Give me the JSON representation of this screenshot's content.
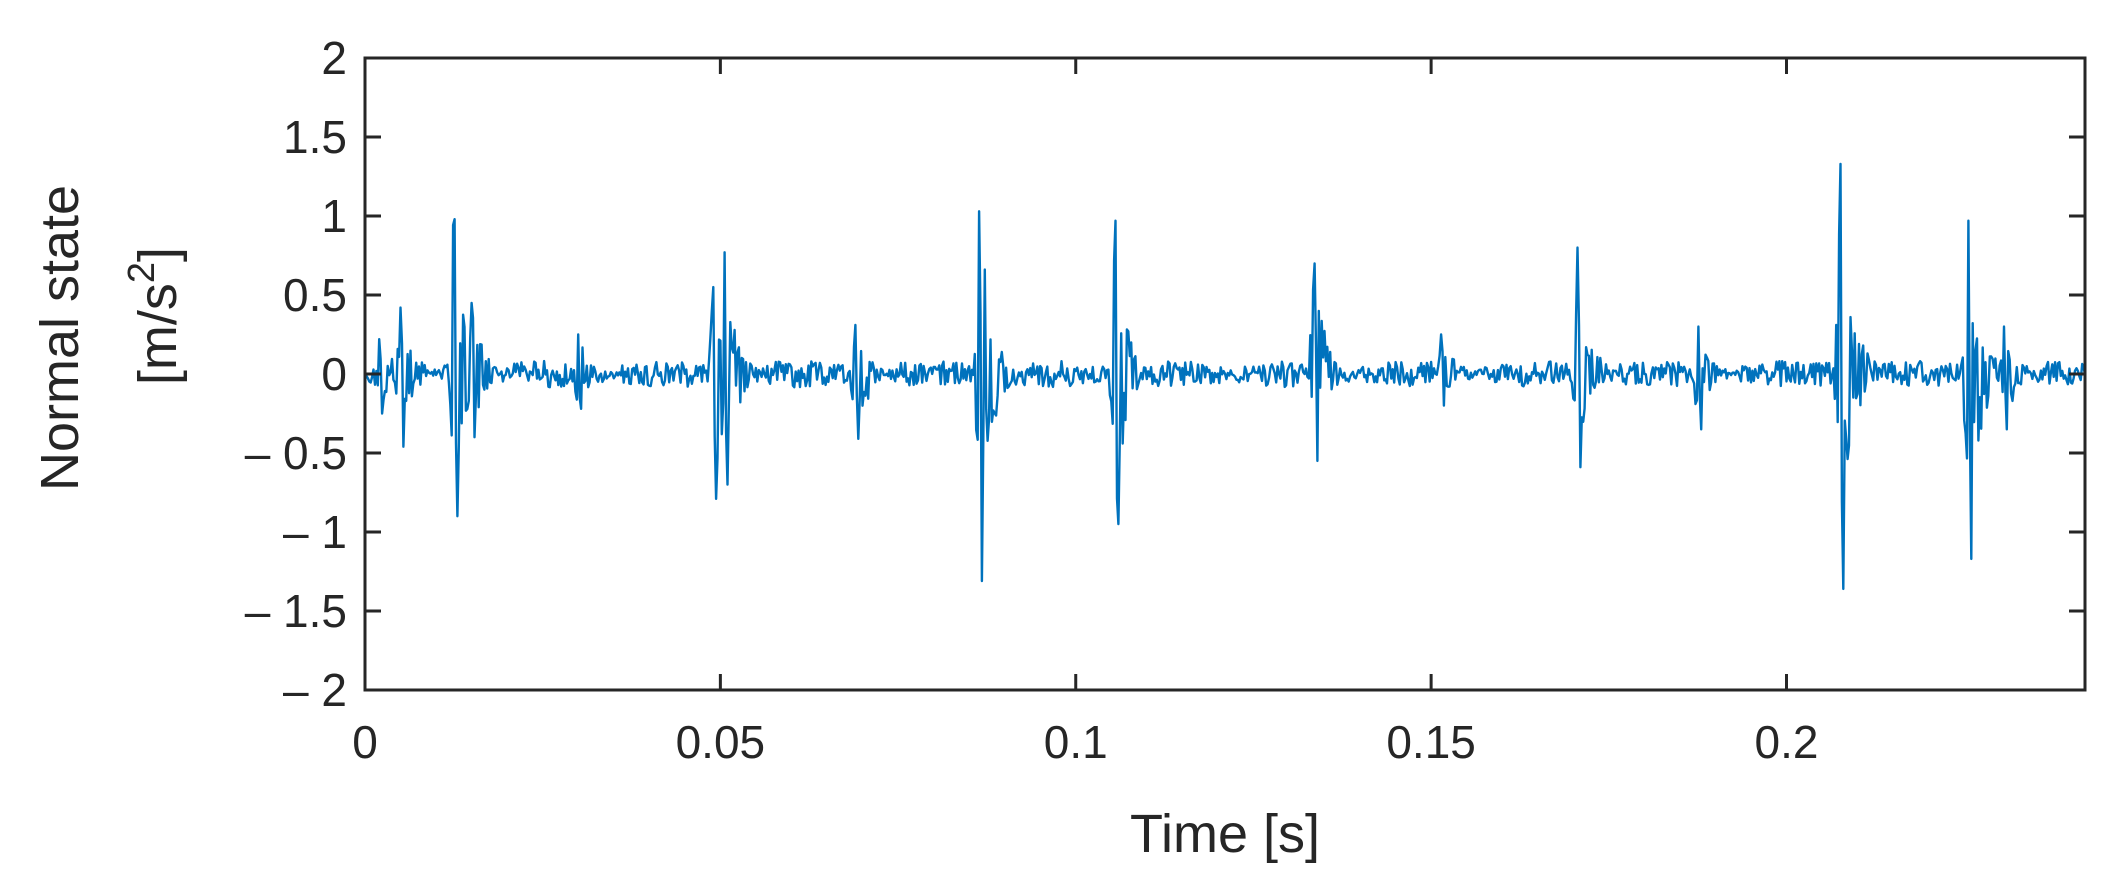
{
  "chart_data": {
    "type": "line",
    "title": "",
    "xlabel": "Time [s]",
    "ylabel_line1": "Normal state",
    "ylabel_line2_prefix": "[m/s",
    "ylabel_line2_sup": "2",
    "ylabel_line2_suffix": "]",
    "xlim": [
      0,
      0.242
    ],
    "ylim": [
      -2,
      2
    ],
    "grid": false,
    "legend": false,
    "line_color": "#0072BD",
    "x_ticks": [
      {
        "value": 0,
        "label": "0"
      },
      {
        "value": 0.05,
        "label": "0.05"
      },
      {
        "value": 0.1,
        "label": "0.1"
      },
      {
        "value": 0.15,
        "label": "0.15"
      },
      {
        "value": 0.2,
        "label": "0.2"
      }
    ],
    "y_ticks": [
      {
        "value": 2,
        "label": "2"
      },
      {
        "value": 1.5,
        "label": "1.5"
      },
      {
        "value": 1,
        "label": "1"
      },
      {
        "value": 0.5,
        "label": "0.5"
      },
      {
        "value": 0,
        "label": "0"
      },
      {
        "value": -0.5,
        "label": "– 0.5"
      },
      {
        "value": -1,
        "label": "– 1"
      },
      {
        "value": -1.5,
        "label": "– 1.5"
      },
      {
        "value": -2,
        "label": "– 2"
      }
    ],
    "series": [
      {
        "sample_interval": 0.0002,
        "noise_amplitude": 0.07,
        "bursts": [
          {
            "t": 0.002,
            "up": 0.22,
            "down": -0.25
          },
          {
            "t": 0.005,
            "up": 0.42,
            "down": -0.46
          },
          {
            "t": 0.0125,
            "up": 0.98,
            "down": -0.9
          },
          {
            "t": 0.015,
            "up": 0.45,
            "down": -0.4
          },
          {
            "t": 0.03,
            "up": 0.25,
            "down": -0.22
          },
          {
            "t": 0.049,
            "up": 0.55,
            "down": -0.79
          },
          {
            "t": 0.0505,
            "up": 0.77,
            "down": -0.7
          },
          {
            "t": 0.069,
            "up": 0.31,
            "down": -0.41
          },
          {
            "t": 0.0865,
            "up": 1.03,
            "down": -1.31
          },
          {
            "t": 0.1055,
            "up": 0.97,
            "down": -0.95
          },
          {
            "t": 0.1335,
            "up": 0.7,
            "down": -0.55
          },
          {
            "t": 0.1515,
            "up": 0.25,
            "down": -0.2
          },
          {
            "t": 0.1705,
            "up": 0.8,
            "down": -0.59
          },
          {
            "t": 0.1875,
            "up": 0.3,
            "down": -0.35
          },
          {
            "t": 0.2075,
            "up": 1.33,
            "down": -1.36
          },
          {
            "t": 0.2255,
            "up": 0.97,
            "down": -1.17
          },
          {
            "t": 0.2305,
            "up": 0.3,
            "down": -0.35
          }
        ]
      }
    ]
  }
}
